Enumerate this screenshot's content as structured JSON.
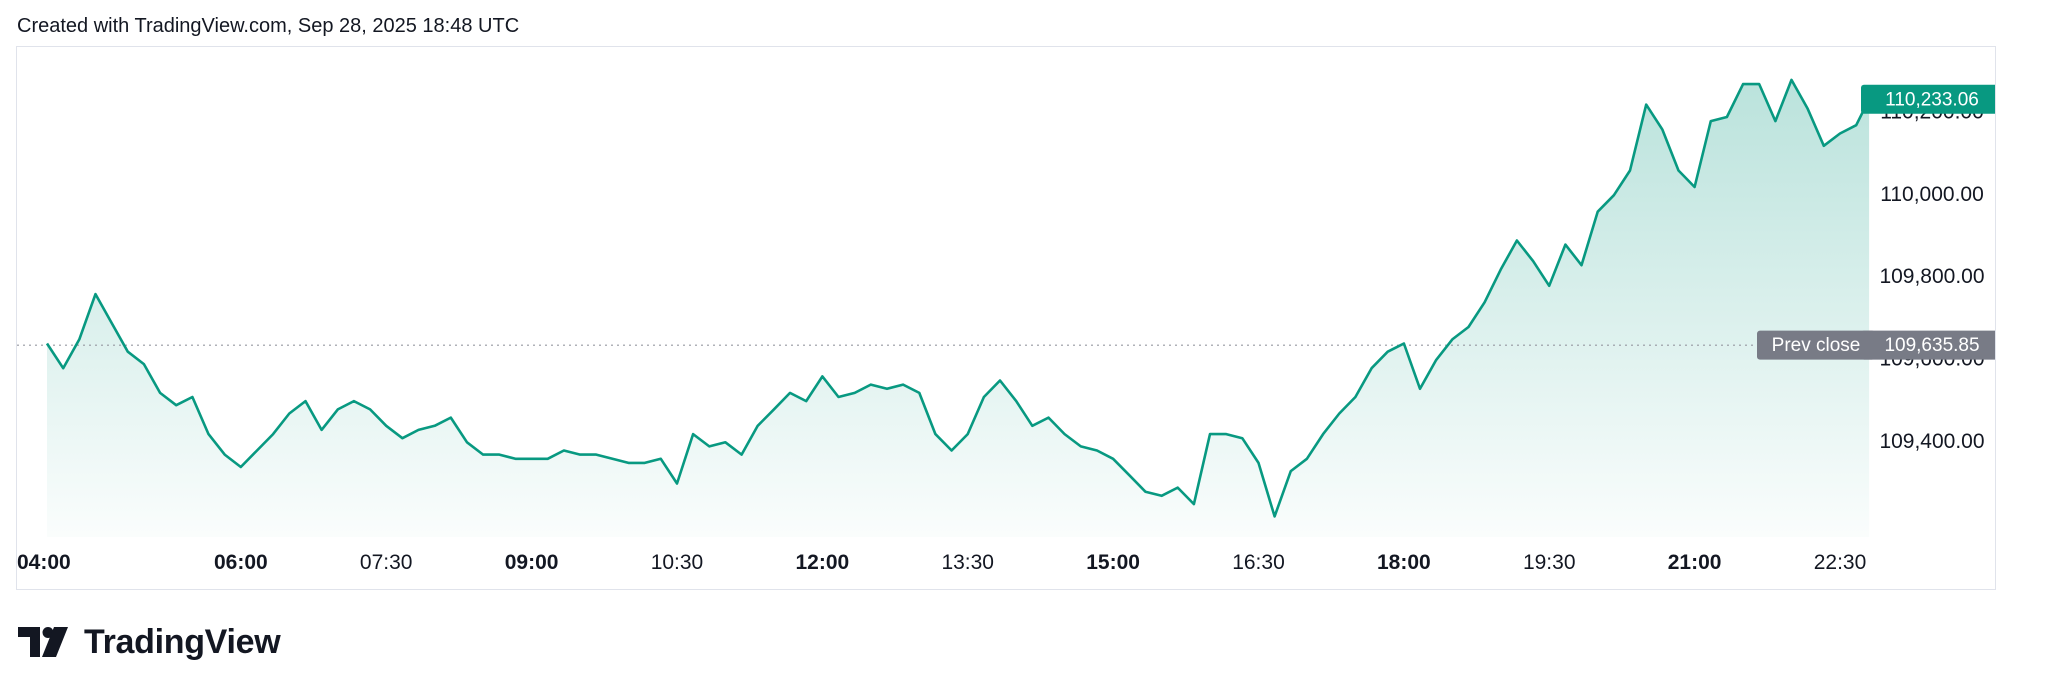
{
  "header": {
    "text": "Created with TradingView.com, Sep 28, 2025 18:48 UTC"
  },
  "brand": {
    "name": "TradingView",
    "logo_icon": "tradingview-logo-icon"
  },
  "colors": {
    "line": "#089981",
    "fill_top": "rgba(8,153,129,0.28)",
    "fill_bottom": "rgba(8,153,129,0.02)",
    "price_badge": "#089981",
    "prev_close_badge": "#787b86",
    "axis_text": "#131722",
    "dotted": "#9598a1"
  },
  "chart_data": {
    "type": "area",
    "x_unit": "time (UTC), Sep 28 2025",
    "xlim": [
      "04:00",
      "22:48"
    ],
    "ylim": [
      109170,
      110360
    ],
    "x_ticks": [
      {
        "label": "04:00",
        "bold": true
      },
      {
        "label": "06:00",
        "bold": true
      },
      {
        "label": "07:30",
        "bold": false
      },
      {
        "label": "09:00",
        "bold": true
      },
      {
        "label": "10:30",
        "bold": false
      },
      {
        "label": "12:00",
        "bold": true
      },
      {
        "label": "13:30",
        "bold": false
      },
      {
        "label": "15:00",
        "bold": true
      },
      {
        "label": "16:30",
        "bold": false
      },
      {
        "label": "18:00",
        "bold": true
      },
      {
        "label": "19:30",
        "bold": false
      },
      {
        "label": "21:00",
        "bold": true
      },
      {
        "label": "22:30",
        "bold": false
      }
    ],
    "y_ticks": [
      "110,200.00",
      "110,000.00",
      "109,800.00",
      "109,600.00",
      "109,400.00"
    ],
    "last_price": {
      "value": 110233.06,
      "label": "110,233.06"
    },
    "prev_close": {
      "value": 109635.85,
      "label": "109,635.85",
      "text": "Prev close"
    },
    "series": [
      {
        "x": [
          "04:00",
          "04:10",
          "04:20",
          "04:30",
          "04:40",
          "04:50",
          "05:00",
          "05:10",
          "05:20",
          "05:30",
          "05:40",
          "05:50",
          "06:00",
          "06:10",
          "06:20",
          "06:30",
          "06:40",
          "06:50",
          "07:00",
          "07:10",
          "07:20",
          "07:30",
          "07:40",
          "07:50",
          "08:00",
          "08:10",
          "08:20",
          "08:30",
          "08:40",
          "08:50",
          "09:00",
          "09:10",
          "09:20",
          "09:30",
          "09:40",
          "09:50",
          "10:00",
          "10:10",
          "10:20",
          "10:30",
          "10:40",
          "10:50",
          "11:00",
          "11:10",
          "11:20",
          "11:30",
          "11:40",
          "11:50",
          "12:00",
          "12:10",
          "12:20",
          "12:30",
          "12:40",
          "12:50",
          "13:00",
          "13:10",
          "13:20",
          "13:30",
          "13:40",
          "13:50",
          "14:00",
          "14:10",
          "14:20",
          "14:30",
          "14:40",
          "14:50",
          "15:00",
          "15:10",
          "15:20",
          "15:30",
          "15:40",
          "15:50",
          "16:00",
          "16:10",
          "16:20",
          "16:30",
          "16:40",
          "16:50",
          "17:00",
          "17:10",
          "17:20",
          "17:30",
          "17:40",
          "17:50",
          "18:00",
          "18:10",
          "18:20",
          "18:30",
          "18:40",
          "18:50",
          "19:00",
          "19:10",
          "19:20",
          "19:30",
          "19:40",
          "19:50",
          "20:00",
          "20:10",
          "20:20",
          "20:30",
          "20:40",
          "20:50",
          "21:00",
          "21:10",
          "21:20",
          "21:30",
          "21:40",
          "21:50",
          "22:00",
          "22:10",
          "22:20",
          "22:30",
          "22:40",
          "22:48"
        ],
        "values": [
          109640,
          109580,
          109650,
          109760,
          109690,
          109620,
          109590,
          109520,
          109490,
          109510,
          109420,
          109370,
          109340,
          109380,
          109420,
          109470,
          109500,
          109430,
          109480,
          109500,
          109480,
          109440,
          109410,
          109430,
          109440,
          109460,
          109400,
          109370,
          109370,
          109360,
          109360,
          109360,
          109380,
          109370,
          109370,
          109360,
          109350,
          109350,
          109360,
          109300,
          109420,
          109390,
          109400,
          109370,
          109440,
          109480,
          109520,
          109500,
          109560,
          109510,
          109520,
          109540,
          109530,
          109540,
          109520,
          109420,
          109380,
          109420,
          109510,
          109550,
          109500,
          109440,
          109460,
          109420,
          109390,
          109380,
          109360,
          109320,
          109280,
          109270,
          109290,
          109250,
          109420,
          109420,
          109410,
          109350,
          109220,
          109330,
          109360,
          109420,
          109470,
          109510,
          109580,
          109620,
          109640,
          109530,
          109600,
          109650,
          109680,
          109740,
          109820,
          109890,
          109840,
          109780,
          109880,
          109830,
          109960,
          110000,
          110060,
          110220,
          110160,
          110060,
          110020,
          110180,
          110190,
          110270,
          110270,
          110180,
          110280,
          110210,
          110120,
          110150,
          110170,
          110233.06
        ]
      }
    ]
  }
}
